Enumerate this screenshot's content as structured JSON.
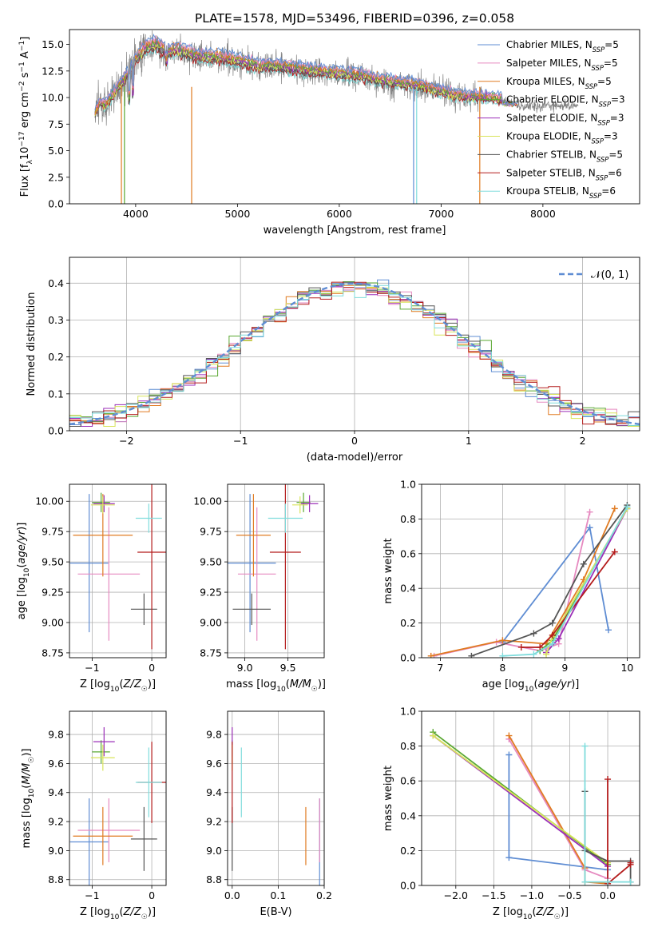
{
  "figure_title": "PLATE=1578, MJD=53496, FIBERID=0396, z=0.058",
  "colors": {
    "Chabrier MILES": "#5f8dd3",
    "Salpeter MILES": "#e68ac0",
    "Kroupa MILES": "#e07b22",
    "Chabrier ELODIE": "#5aa832",
    "Salpeter ELODIE": "#9b2fb8",
    "Kroupa ELODIE": "#d8e45a",
    "Chabrier STELIB": "#555555",
    "Salpeter STELIB": "#b41c1c",
    "Kroupa STELIB": "#7fdcdc",
    "data": "#808080",
    "normal": "#5f8dd3"
  },
  "chart_data": [
    {
      "type": "line",
      "title": "PLATE=1578, MJD=53496, FIBERID=0396, z=0.058",
      "xlabel": "wavelength [Angstrom, rest frame]",
      "ylabel": "Flux [f_λ 10^-17 erg cm^-2 s^-1 A^-1]",
      "xlim": [
        3350,
        8950
      ],
      "ylim": [
        0,
        16.4
      ],
      "xticks": [
        4000,
        5000,
        6000,
        7000,
        8000
      ],
      "yticks": [
        0.0,
        2.5,
        5.0,
        7.5,
        10.0,
        12.5,
        15.0
      ],
      "legend_position": "top-right",
      "legend": [
        {
          "prefix": "Chabrier MILES, N",
          "sub": "SSP",
          "suffix": "=5"
        },
        {
          "prefix": "Salpeter MILES, N",
          "sub": "SSP",
          "suffix": "=5"
        },
        {
          "prefix": "Kroupa MILES, N",
          "sub": "SSP",
          "suffix": "=5"
        },
        {
          "prefix": "Chabrier ELODIE, N",
          "sub": "SSP",
          "suffix": "=3"
        },
        {
          "prefix": "Salpeter ELODIE, N",
          "sub": "SSP",
          "suffix": "=3"
        },
        {
          "prefix": "Kroupa ELODIE, N",
          "sub": "SSP",
          "suffix": "=3"
        },
        {
          "prefix": "Chabrier STELIB, N",
          "sub": "SSP",
          "suffix": "=5"
        },
        {
          "prefix": "Salpeter STELIB, N",
          "sub": "SSP",
          "suffix": "=6"
        },
        {
          "prefix": "Kroupa STELIB, N",
          "sub": "SSP",
          "suffix": "=6"
        }
      ],
      "continuum": {
        "x": [
          3600,
          3650,
          3700,
          3800,
          3900,
          4000,
          4100,
          4200,
          4300,
          4400,
          4500,
          4600,
          4800,
          5000,
          5200,
          5400,
          5600,
          5800,
          6000,
          6200,
          6400,
          6600,
          6800,
          7000,
          7200,
          7400,
          7600,
          7800
        ],
        "y": [
          8.5,
          9.5,
          9.2,
          10.5,
          11.8,
          13.5,
          14.6,
          14.9,
          14.2,
          14.4,
          14.1,
          13.8,
          13.7,
          13.4,
          12.9,
          12.9,
          12.6,
          12.4,
          12.2,
          12.0,
          11.6,
          11.3,
          11.0,
          10.5,
          10.1,
          10.0,
          9.8,
          9.2
        ]
      }
    },
    {
      "type": "line",
      "xlabel": "(data-model)/error",
      "ylabel": "Normed distribution",
      "xlim": [
        -2.5,
        2.5
      ],
      "ylim": [
        0,
        0.47
      ],
      "xticks": [
        -2,
        -1,
        0,
        1,
        2
      ],
      "yticks": [
        0.0,
        0.1,
        0.2,
        0.3,
        0.4
      ],
      "legend_position": "top-right",
      "legend": [
        "𝒩(0, 1)"
      ],
      "bin_width": 0.1
    },
    {
      "type": "scatter",
      "xlabel": "Z [log10(Z/Z☉)]",
      "ylabel": "age [log10(age/yr)]",
      "xlim": [
        -1.38,
        0.24
      ],
      "ylim": [
        8.71,
        10.14
      ],
      "xticks": [
        -1,
        0
      ],
      "yticks": [
        8.75,
        9.0,
        9.25,
        9.5,
        9.75,
        10.0
      ],
      "points": [
        {
          "model": "Chabrier MILES",
          "x": -1.05,
          "xerr": 0.32,
          "y": 9.49,
          "yerr": 0.57
        },
        {
          "model": "Salpeter MILES",
          "x": -0.72,
          "xerr": 0.52,
          "y": 9.4,
          "yerr": 0.55
        },
        {
          "model": "Kroupa MILES",
          "x": -0.82,
          "xerr": 0.5,
          "y": 9.72,
          "yerr": 0.34
        },
        {
          "model": "Chabrier ELODIE",
          "x": -0.85,
          "xerr": 0.15,
          "y": 9.99,
          "yerr": 0.08
        },
        {
          "model": "Salpeter ELODIE",
          "x": -0.8,
          "xerr": 0.18,
          "y": 9.98,
          "yerr": 0.07
        },
        {
          "model": "Kroupa ELODIE",
          "x": -0.82,
          "xerr": 0.2,
          "y": 9.97,
          "yerr": 0.07
        },
        {
          "model": "Chabrier STELIB",
          "x": -0.13,
          "xerr": 0.22,
          "y": 9.11,
          "yerr": 0.13
        },
        {
          "model": "Salpeter STELIB",
          "x": 0.0,
          "xerr": 0.24,
          "y": 9.58,
          "yerr": 0.8
        },
        {
          "model": "Kroupa STELIB",
          "x": -0.05,
          "xerr": 0.22,
          "y": 9.86,
          "yerr": 0.12
        }
      ]
    },
    {
      "type": "scatter",
      "xlabel": "mass [log10(M/M☉)]",
      "ylabel": "",
      "xlim": [
        8.8,
        9.92
      ],
      "ylim": [
        8.71,
        10.14
      ],
      "xticks": [
        9.0,
        9.5
      ],
      "yticks": [
        8.75,
        9.0,
        9.25,
        9.5,
        9.75,
        10.0
      ],
      "points": [
        {
          "model": "Chabrier MILES",
          "x": 9.06,
          "xerr": 0.3,
          "y": 9.49,
          "yerr": 0.57
        },
        {
          "model": "Salpeter MILES",
          "x": 9.14,
          "xerr": 0.22,
          "y": 9.4,
          "yerr": 0.55
        },
        {
          "model": "Kroupa MILES",
          "x": 9.1,
          "xerr": 0.2,
          "y": 9.72,
          "yerr": 0.34
        },
        {
          "model": "Chabrier ELODIE",
          "x": 9.68,
          "xerr": 0.08,
          "y": 9.99,
          "yerr": 0.08
        },
        {
          "model": "Salpeter ELODIE",
          "x": 9.75,
          "xerr": 0.1,
          "y": 9.98,
          "yerr": 0.07
        },
        {
          "model": "Kroupa ELODIE",
          "x": 9.64,
          "xerr": 0.09,
          "y": 9.97,
          "yerr": 0.07
        },
        {
          "model": "Chabrier STELIB",
          "x": 9.08,
          "xerr": 0.22,
          "y": 9.11,
          "yerr": 0.13
        },
        {
          "model": "Salpeter STELIB",
          "x": 9.47,
          "xerr": 0.18,
          "y": 9.58,
          "yerr": 0.8
        },
        {
          "model": "Kroupa STELIB",
          "x": 9.47,
          "xerr": 0.2,
          "y": 9.86,
          "yerr": 0.12
        }
      ]
    },
    {
      "type": "line",
      "xlabel": "age [log10(age/yr)]",
      "ylabel": "mass weight",
      "xlim": [
        6.7,
        10.2
      ],
      "ylim": [
        0,
        1.0
      ],
      "xticks": [
        7,
        8,
        9,
        10
      ],
      "yticks": [
        0.0,
        0.2,
        0.4,
        0.6,
        0.8,
        1.0
      ],
      "series": [
        {
          "model": "Chabrier MILES",
          "x": [
            8.0,
            9.4,
            9.7
          ],
          "y": [
            0.09,
            0.75,
            0.16
          ]
        },
        {
          "model": "Salpeter MILES",
          "x": [
            6.9,
            7.9,
            8.6,
            8.9,
            9.4
          ],
          "y": [
            0.01,
            0.09,
            0.04,
            0.08,
            0.84
          ]
        },
        {
          "model": "Kroupa MILES",
          "x": [
            6.85,
            8.0,
            8.7,
            9.3,
            9.8
          ],
          "y": [
            0.01,
            0.1,
            0.08,
            0.45,
            0.86
          ]
        },
        {
          "model": "Chabrier ELODIE",
          "x": [
            8.6,
            8.8,
            10.0
          ],
          "y": [
            0.04,
            0.1,
            0.86
          ]
        },
        {
          "model": "Salpeter ELODIE",
          "x": [
            8.7,
            8.9,
            10.0
          ],
          "y": [
            0.03,
            0.11,
            0.86
          ]
        },
        {
          "model": "Kroupa ELODIE",
          "x": [
            8.7,
            8.8,
            10.0
          ],
          "y": [
            0.02,
            0.12,
            0.86
          ]
        },
        {
          "model": "Chabrier STELIB",
          "x": [
            7.5,
            8.5,
            8.8,
            9.3,
            10.0
          ],
          "y": [
            0.01,
            0.14,
            0.2,
            0.54,
            0.88
          ]
        },
        {
          "model": "Salpeter STELIB",
          "x": [
            8.3,
            8.6,
            8.8,
            9.8
          ],
          "y": [
            0.06,
            0.06,
            0.13,
            0.61
          ]
        },
        {
          "model": "Kroupa STELIB",
          "x": [
            8.0,
            8.5,
            8.8,
            10.0
          ],
          "y": [
            0.01,
            0.02,
            0.08,
            0.87
          ]
        }
      ]
    },
    {
      "type": "scatter",
      "xlabel": "Z [log10(Z/Z☉)]",
      "ylabel": "mass [log10(M/M☉)]",
      "xlim": [
        -1.38,
        0.24
      ],
      "ylim": [
        8.76,
        9.96
      ],
      "xticks": [
        -1,
        0
      ],
      "yticks": [
        8.8,
        9.0,
        9.2,
        9.4,
        9.6,
        9.8
      ],
      "points": [
        {
          "model": "Chabrier MILES",
          "x": -1.05,
          "xerr": 0.32,
          "y": 9.06,
          "yerr": 0.3
        },
        {
          "model": "Salpeter MILES",
          "x": -0.72,
          "xerr": 0.52,
          "y": 9.14,
          "yerr": 0.22
        },
        {
          "model": "Kroupa MILES",
          "x": -0.82,
          "xerr": 0.5,
          "y": 9.1,
          "yerr": 0.2
        },
        {
          "model": "Chabrier ELODIE",
          "x": -0.85,
          "xerr": 0.15,
          "y": 9.68,
          "yerr": 0.08
        },
        {
          "model": "Salpeter ELODIE",
          "x": -0.8,
          "xerr": 0.18,
          "y": 9.75,
          "yerr": 0.1
        },
        {
          "model": "Kroupa ELODIE",
          "x": -0.82,
          "xerr": 0.2,
          "y": 9.64,
          "yerr": 0.09
        },
        {
          "model": "Chabrier STELIB",
          "x": -0.13,
          "xerr": 0.22,
          "y": 9.08,
          "yerr": 0.22
        },
        {
          "model": "Salpeter STELIB",
          "x": 0.0,
          "xerr": 0.24,
          "y": 9.47,
          "yerr": 0.28
        },
        {
          "model": "Kroupa STELIB",
          "x": -0.05,
          "xerr": 0.22,
          "y": 9.47,
          "yerr": 0.24
        }
      ]
    },
    {
      "type": "scatter",
      "xlabel": "E(B-V)",
      "ylabel": "",
      "xlim": [
        -0.01,
        0.2
      ],
      "ylim": [
        8.76,
        9.96
      ],
      "xticks": [
        0.0,
        0.1,
        0.2
      ],
      "yticks": [
        8.8,
        9.0,
        9.2,
        9.4,
        9.6,
        9.8
      ],
      "points": [
        {
          "model": "Chabrier MILES",
          "x": 0.19,
          "y": 9.06,
          "yerr": 0.3
        },
        {
          "model": "Salpeter MILES",
          "x": 0.19,
          "y": 9.14,
          "yerr": 0.22
        },
        {
          "model": "Kroupa MILES",
          "x": 0.16,
          "y": 9.1,
          "yerr": 0.2
        },
        {
          "model": "Chabrier ELODIE",
          "x": 0.0,
          "y": 9.68,
          "yerr": 0.08
        },
        {
          "model": "Salpeter ELODIE",
          "x": 0.0,
          "y": 9.75,
          "yerr": 0.1
        },
        {
          "model": "Kroupa ELODIE",
          "x": 0.0,
          "y": 9.64,
          "yerr": 0.09
        },
        {
          "model": "Chabrier STELIB",
          "x": 0.0,
          "y": 9.08,
          "yerr": 0.22
        },
        {
          "model": "Salpeter STELIB",
          "x": 0.0,
          "y": 9.47,
          "yerr": 0.28
        },
        {
          "model": "Kroupa STELIB",
          "x": 0.02,
          "y": 9.47,
          "yerr": 0.24
        }
      ]
    },
    {
      "type": "line",
      "xlabel": "Z [log10(Z/Z☉)]",
      "ylabel": "mass weight",
      "xlim": [
        -2.45,
        0.42
      ],
      "ylim": [
        0,
        1.0
      ],
      "xticks": [
        -2.0,
        -1.5,
        -1.0,
        -0.5,
        0.0
      ],
      "yticks": [
        0.0,
        0.2,
        0.4,
        0.6,
        0.8,
        1.0
      ],
      "series": [
        {
          "model": "Chabrier MILES",
          "x": [
            -1.3,
            -1.3,
            0.0,
            0.0
          ],
          "y": [
            0.75,
            0.16,
            0.09,
            0.02
          ]
        },
        {
          "model": "Salpeter MILES",
          "x": [
            -1.3,
            -0.3,
            0.0
          ],
          "y": [
            0.84,
            0.09,
            0.04
          ]
        },
        {
          "model": "Kroupa MILES",
          "x": [
            -1.3,
            -0.3,
            -0.3,
            0.0
          ],
          "y": [
            0.86,
            0.1,
            0.02,
            0.01
          ]
        },
        {
          "model": "Chabrier ELODIE",
          "x": [
            -2.3,
            0.0
          ],
          "y": [
            0.88,
            0.12
          ]
        },
        {
          "model": "Salpeter ELODIE",
          "x": [
            -2.3,
            0.0
          ],
          "y": [
            0.86,
            0.11
          ]
        },
        {
          "model": "Kroupa ELODIE",
          "x": [
            -2.3,
            0.0
          ],
          "y": [
            0.86,
            0.13
          ]
        },
        {
          "model": "Chabrier STELIB",
          "x": [
            -0.3,
            -0.3,
            0.0,
            0.3,
            0.3
          ],
          "y": [
            0.54,
            0.2,
            0.14,
            0.14,
            0.02
          ]
        },
        {
          "model": "Salpeter STELIB",
          "x": [
            0.0,
            0.0,
            0.3,
            0.3
          ],
          "y": [
            0.61,
            0.01,
            0.12,
            0.13
          ]
        },
        {
          "model": "Kroupa STELIB",
          "x": [
            -0.3,
            -0.3,
            0.0,
            0.3
          ],
          "y": [
            0.8,
            0.02,
            0.02,
            0.02
          ]
        }
      ]
    }
  ]
}
